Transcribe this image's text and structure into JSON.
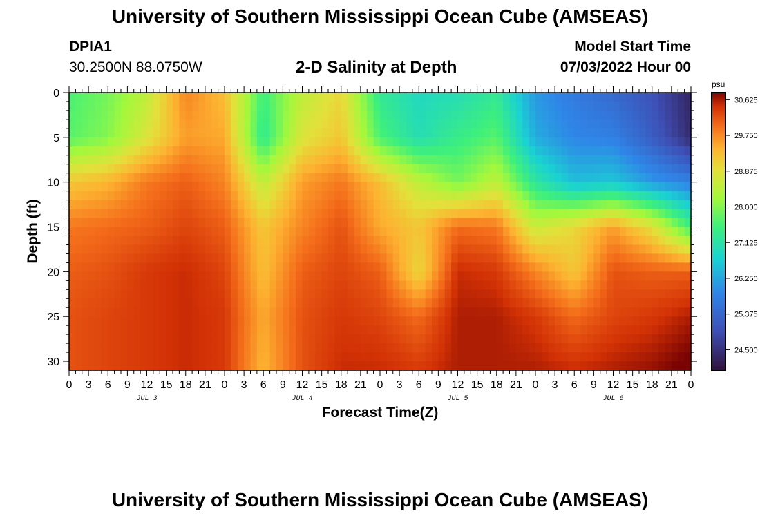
{
  "header": {
    "title": "University of Southern Mississippi Ocean Cube (AMSEAS)",
    "station": "DPIA1",
    "coords": "30.2500N  88.0750W",
    "plot_title": "2-D Salinity at Depth",
    "start_label": "Model Start Time",
    "start_value": "07/03/2022 Hour 00"
  },
  "footer": {
    "title": "University of Southern Mississippi Ocean Cube (AMSEAS)"
  },
  "chart_data": {
    "type": "heatmap",
    "title": "2-D Salinity at Depth",
    "xlabel": "Forecast Time(Z)",
    "ylabel": "Depth (ft)",
    "x_hours_range": [
      0,
      96
    ],
    "ylim": [
      0,
      31
    ],
    "y_ticks": [
      0,
      5,
      10,
      15,
      20,
      25,
      30
    ],
    "x_tick_labels": [
      "0",
      "3",
      "6",
      "9",
      "12",
      "15",
      "18",
      "21",
      "0",
      "3",
      "6",
      "9",
      "12",
      "15",
      "18",
      "21",
      "0",
      "3",
      "6",
      "9",
      "12",
      "15",
      "18",
      "21",
      "0",
      "3",
      "6",
      "9",
      "12",
      "15",
      "18",
      "21",
      "0"
    ],
    "day_labels": [
      {
        "label": "JUL 3",
        "hour": 12
      },
      {
        "label": "JUL 4",
        "hour": 36
      },
      {
        "label": "JUL 5",
        "hour": 60
      },
      {
        "label": "JUL 6",
        "hour": 84
      }
    ],
    "colorbar": {
      "units": "psu",
      "min": 24.0,
      "max": 30.8,
      "tick_labels": [
        "30.625",
        "29.750",
        "28.875",
        "28.000",
        "27.125",
        "26.250",
        "25.375",
        "24.500"
      ],
      "tick_values": [
        30.625,
        29.75,
        28.875,
        28.0,
        27.125,
        26.25,
        25.375,
        24.5
      ]
    },
    "grid_hours": [
      0,
      6,
      12,
      18,
      24,
      30,
      36,
      42,
      48,
      54,
      60,
      66,
      72,
      78,
      84,
      90,
      96
    ],
    "grid_depths": [
      0,
      5,
      10,
      15,
      20,
      25,
      31
    ],
    "salinity_grid": [
      [
        27.6,
        27.9,
        28.5,
        29.8,
        29.3,
        27.5,
        28.5,
        29.0,
        27.3,
        26.9,
        27.0,
        27.3,
        26.1,
        25.7,
        25.4,
        25.0,
        24.3
      ],
      [
        27.7,
        28.0,
        28.8,
        29.6,
        29.5,
        27.3,
        28.8,
        29.2,
        27.6,
        27.0,
        27.4,
        27.7,
        26.3,
        25.9,
        25.8,
        25.2,
        24.4
      ],
      [
        29.2,
        29.4,
        29.9,
        30.1,
        29.8,
        28.5,
        29.6,
        29.9,
        29.3,
        28.5,
        27.9,
        28.5,
        27.2,
        26.5,
        26.6,
        26.1,
        25.8
      ],
      [
        29.9,
        30.0,
        30.1,
        30.3,
        30.1,
        29.2,
        29.8,
        30.2,
        29.5,
        29.2,
        30.0,
        29.9,
        28.6,
        29.0,
        29.6,
        28.9,
        27.5
      ],
      [
        30.1,
        30.2,
        30.4,
        30.5,
        30.3,
        29.3,
        30.1,
        30.3,
        30.1,
        29.0,
        30.5,
        30.4,
        29.8,
        29.2,
        30.2,
        30.1,
        30.1
      ],
      [
        30.2,
        30.3,
        30.4,
        30.5,
        30.4,
        29.5,
        30.2,
        30.4,
        30.3,
        30.0,
        30.6,
        30.6,
        30.4,
        30.0,
        30.3,
        30.4,
        30.6
      ],
      [
        30.2,
        30.3,
        30.4,
        30.5,
        30.4,
        29.4,
        30.2,
        30.5,
        30.5,
        30.4,
        30.6,
        30.6,
        30.6,
        30.5,
        30.6,
        30.7,
        30.9
      ]
    ]
  }
}
